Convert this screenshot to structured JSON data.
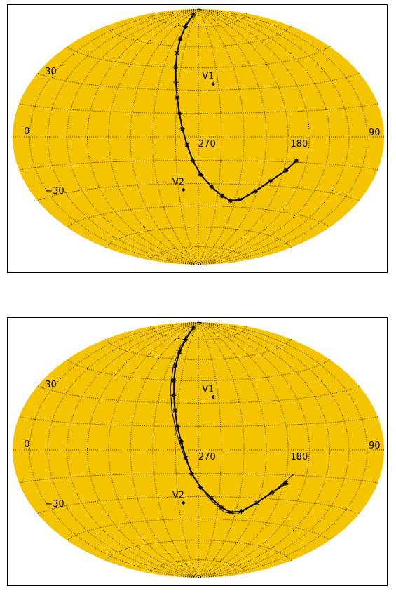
{
  "chart_data": [
    {
      "type": "scatter",
      "projection": "hammer-aitoff-all-sky",
      "fill_color": "#f4c400",
      "grid": true,
      "grid_style": "dotted",
      "longitude_labels": [
        "270",
        "180",
        "90"
      ],
      "latitude_labels": [
        "30",
        "0",
        "−30"
      ],
      "sources": [
        {
          "name": "V1",
          "lon": 255,
          "lat": 34
        },
        {
          "name": "V2",
          "lon": 285,
          "lat": -34
        }
      ],
      "series": [
        {
          "marker": "asterisk",
          "points": [
            {
              "lon": 307,
              "lat": 85
            },
            {
              "lon": 305,
              "lat": 75
            },
            {
              "lon": 302,
              "lat": 65
            },
            {
              "lon": 299,
              "lat": 55
            },
            {
              "lon": 296,
              "lat": 45
            },
            {
              "lon": 293,
              "lat": 35
            },
            {
              "lon": 290,
              "lat": 25
            },
            {
              "lon": 287,
              "lat": 15
            },
            {
              "lon": 284,
              "lat": 5
            },
            {
              "lon": 280,
              "lat": -5
            },
            {
              "lon": 275,
              "lat": -15
            },
            {
              "lon": 268,
              "lat": -24
            },
            {
              "lon": 257,
              "lat": -32
            },
            {
              "lon": 245,
              "lat": -38
            },
            {
              "lon": 235,
              "lat": -41
            },
            {
              "lon": 225,
              "lat": -40
            },
            {
              "lon": 212,
              "lat": -34
            },
            {
              "lon": 200,
              "lat": -27
            },
            {
              "lon": 188,
              "lat": -20
            },
            {
              "lon": 180,
              "lat": -14
            }
          ]
        }
      ]
    },
    {
      "type": "scatter",
      "projection": "hammer-aitoff-all-sky",
      "fill_color": "#f4c400",
      "grid": true,
      "grid_style": "dotted",
      "longitude_labels": [
        "270",
        "180",
        "90"
      ],
      "latitude_labels": [
        "30",
        "0",
        "−30"
      ],
      "sources": [
        {
          "name": "V1",
          "lon": 255,
          "lat": 34
        },
        {
          "name": "V2",
          "lon": 285,
          "lat": -34
        }
      ],
      "series": [
        {
          "marker": "asterisk",
          "points": [
            {
              "lon": 307,
              "lat": 85
            },
            {
              "lon": 305,
              "lat": 75
            },
            {
              "lon": 303,
              "lat": 65
            },
            {
              "lon": 301,
              "lat": 55
            },
            {
              "lon": 298,
              "lat": 45
            },
            {
              "lon": 295,
              "lat": 35
            },
            {
              "lon": 292,
              "lat": 25
            },
            {
              "lon": 289,
              "lat": 15
            },
            {
              "lon": 285,
              "lat": 5
            },
            {
              "lon": 281,
              "lat": -5
            },
            {
              "lon": 276,
              "lat": -15
            },
            {
              "lon": 268,
              "lat": -24
            },
            {
              "lon": 257,
              "lat": -31
            },
            {
              "lon": 246,
              "lat": -37
            },
            {
              "lon": 235,
              "lat": -40
            },
            {
              "lon": 224,
              "lat": -39
            },
            {
              "lon": 211,
              "lat": -33
            },
            {
              "lon": 199,
              "lat": -26
            },
            {
              "lon": 188,
              "lat": -20
            }
          ]
        },
        {
          "marker": "line",
          "points": [
            {
              "lon": 309,
              "lat": 85
            },
            {
              "lon": 307,
              "lat": 70
            },
            {
              "lon": 304,
              "lat": 55
            },
            {
              "lon": 300,
              "lat": 40
            },
            {
              "lon": 295,
              "lat": 25
            },
            {
              "lon": 289,
              "lat": 10
            },
            {
              "lon": 282,
              "lat": -5
            },
            {
              "lon": 272,
              "lat": -20
            },
            {
              "lon": 258,
              "lat": -32
            },
            {
              "lon": 242,
              "lat": -40
            },
            {
              "lon": 228,
              "lat": -41
            },
            {
              "lon": 212,
              "lat": -34
            },
            {
              "lon": 196,
              "lat": -24
            },
            {
              "lon": 182,
              "lat": -14
            }
          ]
        }
      ]
    }
  ]
}
